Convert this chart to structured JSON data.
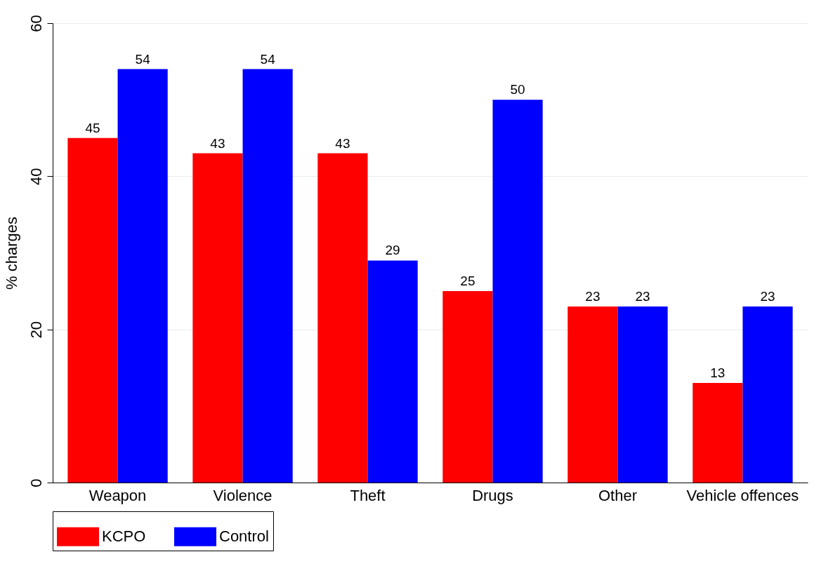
{
  "chart_data": {
    "type": "bar",
    "ylabel": "% charges",
    "categories": [
      "Weapon",
      "Violence",
      "Theft",
      "Drugs",
      "Other",
      "Vehicle offences"
    ],
    "series": [
      {
        "name": "KCPO",
        "color": "#ff0000",
        "values": [
          45,
          43,
          43,
          25,
          23,
          13
        ]
      },
      {
        "name": "Control",
        "color": "#0000ff",
        "values": [
          54,
          54,
          29,
          50,
          23,
          23
        ]
      }
    ],
    "ylim": [
      0,
      60
    ],
    "yticks": [
      0,
      20,
      40,
      60
    ],
    "grid": "y",
    "legend": "bottom",
    "data_labels": true
  }
}
